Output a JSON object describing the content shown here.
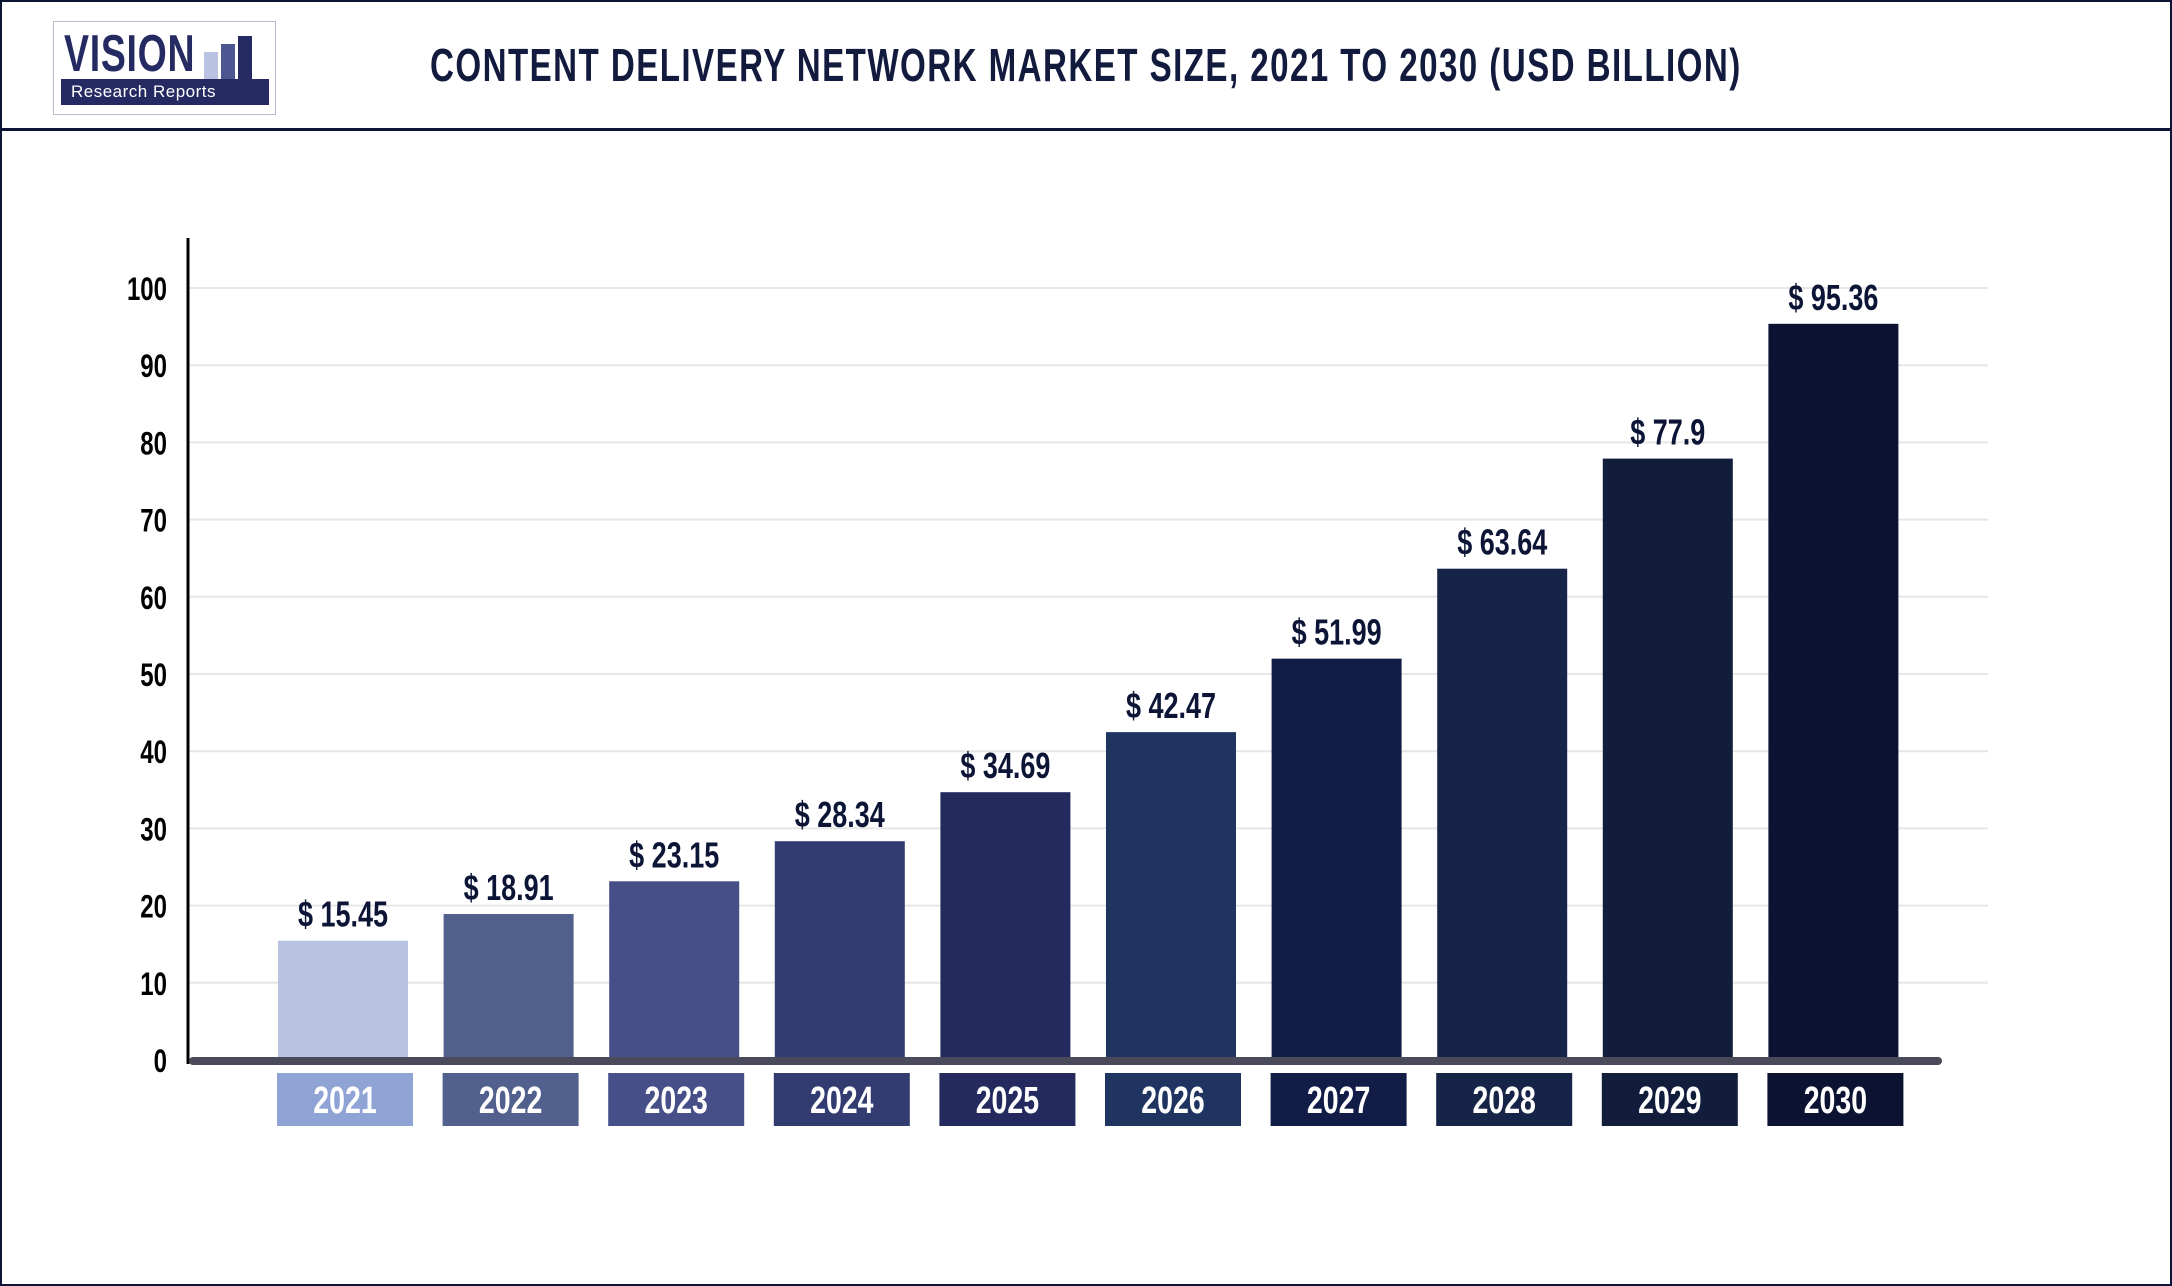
{
  "logo": {
    "word": "VISION",
    "tagline": "Research Reports"
  },
  "colors": {
    "frame": "#0d1537",
    "bars": [
      "#b8c3e1",
      "#52608e",
      "#464f88",
      "#323c70",
      "#24295e",
      "#1f3460",
      "#111c47",
      "#162447",
      "#121d3c",
      "#0b1232"
    ],
    "category_boxes": [
      "#8fa3d4",
      "#52608e",
      "#464f88",
      "#323c70",
      "#24295e",
      "#1f3460",
      "#111c47",
      "#162447",
      "#121d3c",
      "#0b1232"
    ],
    "axis_baseline": "#4a4a5a",
    "grid": "#e6e6e6"
  },
  "chart_data": {
    "type": "bar",
    "title": "CONTENT DELIVERY NETWORK MARKET SIZE, 2021 TO 2030 (USD BILLION)",
    "categories": [
      "2021",
      "2022",
      "2023",
      "2024",
      "2025",
      "2026",
      "2027",
      "2028",
      "2029",
      "2030"
    ],
    "values": [
      15.45,
      18.91,
      23.15,
      28.34,
      34.69,
      42.47,
      51.99,
      63.64,
      77.9,
      95.36
    ],
    "data_labels": [
      "$ 15.45",
      "$ 18.91",
      "$ 23.15",
      "$ 28.34",
      "$ 34.69",
      "$ 42.47",
      "$ 51.99",
      "$ 63.64",
      "$ 77.9",
      "$ 95.36"
    ],
    "ylim": [
      0,
      100
    ],
    "yticks": [
      "0",
      "10",
      "20",
      "30",
      "40",
      "50",
      "60",
      "70",
      "80",
      "90",
      "100"
    ],
    "grid": true,
    "legend": "none",
    "xlabel": "",
    "ylabel": ""
  }
}
